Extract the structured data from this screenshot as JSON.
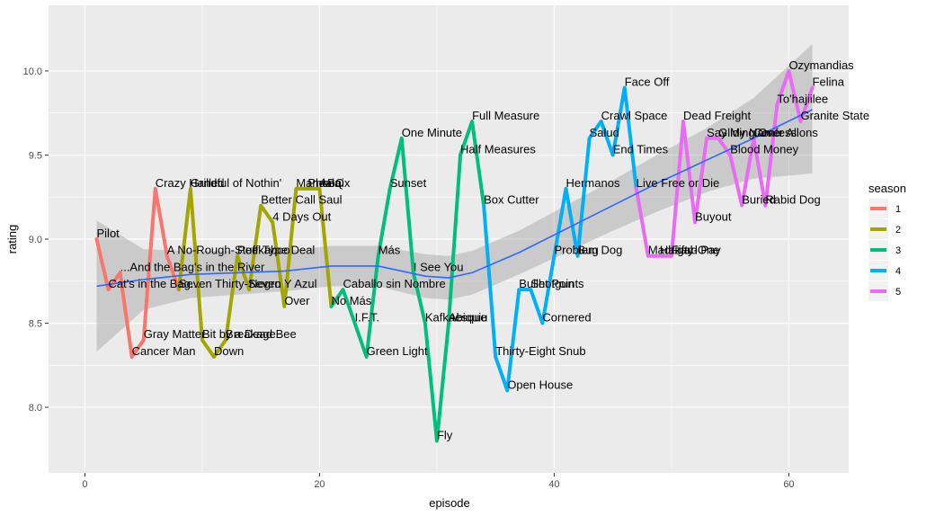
{
  "chart_data": {
    "type": "line",
    "xlabel": "episode",
    "ylabel": "rating",
    "xlim": [
      -3.1,
      65.1
    ],
    "ylim": [
      7.61,
      10.39
    ],
    "x_ticks": [
      0,
      20,
      40,
      60
    ],
    "x_tick_labels": [
      "0",
      "20",
      "40",
      "60"
    ],
    "y_ticks": [
      8.0,
      8.5,
      9.0,
      9.5,
      10.0
    ],
    "y_tick_labels": [
      "8.0",
      "8.5",
      "9.0",
      "9.5",
      "10.0"
    ],
    "grid": true,
    "legend": {
      "title": "season",
      "position": "right"
    },
    "series": [
      {
        "name": "1",
        "color": "#F8766D",
        "x": [
          1,
          2,
          3,
          4,
          5,
          6,
          7
        ],
        "y": [
          9.0,
          8.7,
          8.8,
          8.3,
          8.4,
          9.3,
          8.9
        ],
        "labels": [
          "Pilot",
          "Cat's in the Bag...",
          "...And the Bag's in the River",
          "Cancer Man",
          "Gray Matter",
          "Crazy Handful of Nothin'",
          "A No-Rough-Stuff-Type Deal"
        ]
      },
      {
        "name": "2",
        "color": "#A3A500",
        "x": [
          8,
          9,
          10,
          11,
          12,
          13,
          14,
          15,
          16,
          17,
          18,
          19,
          20
        ],
        "y": [
          8.7,
          9.3,
          8.4,
          8.3,
          8.4,
          8.9,
          8.7,
          9.2,
          9.1,
          8.6,
          9.3,
          9.3,
          9.3
        ],
        "labels": [
          "Seven Thirty-Seven",
          "Grilled",
          "Bit by a Dead Bee",
          "Down",
          "Breakage",
          "Peekaboo",
          "Negro Y Azul",
          "Better Call Saul",
          "4 Days Out",
          "Over",
          "Mandala",
          "Phoenix",
          "ABQ"
        ]
      },
      {
        "name": "3",
        "color": "#00BF7D",
        "x": [
          21,
          22,
          23,
          24,
          25,
          26,
          27,
          28,
          29,
          30,
          31,
          32,
          33
        ],
        "y": [
          8.6,
          8.7,
          8.5,
          8.3,
          8.9,
          9.3,
          9.6,
          8.8,
          8.5,
          7.8,
          8.5,
          9.5,
          9.7
        ],
        "labels": [
          "No Más",
          "Caballo sin Nombre",
          "I.F.T.",
          "Green Light",
          "Más",
          "Sunset",
          "One Minute",
          "I See You",
          "Kafkaesque",
          "Fly",
          "Abiquiu",
          "Half Measures",
          "Full Measure"
        ]
      },
      {
        "name": "4",
        "color": "#00B0F6",
        "x": [
          34,
          35,
          36,
          37,
          38,
          39,
          40,
          41,
          42,
          43,
          44,
          45,
          46
        ],
        "y": [
          9.2,
          8.3,
          8.1,
          8.7,
          8.7,
          8.5,
          8.9,
          9.3,
          8.9,
          9.6,
          9.7,
          9.5,
          9.9
        ],
        "labels": [
          "Box Cutter",
          "Thirty-Eight Snub",
          "Open House",
          "Bullet Points",
          "Shotgun",
          "Cornered",
          "Problem Dog",
          "Hermanos",
          "Bug",
          "Salud",
          "Crawl Space",
          "End Times",
          "Face Off"
        ]
      },
      {
        "name": "5",
        "color": "#E76BF3",
        "x": [
          47,
          48,
          49,
          50,
          51,
          52,
          53,
          54,
          55,
          56,
          57,
          58,
          59,
          60,
          61,
          62
        ],
        "y": [
          9.3,
          8.9,
          8.9,
          8.9,
          9.7,
          9.1,
          9.6,
          9.6,
          9.5,
          9.2,
          9.6,
          9.2,
          9.8,
          10.0,
          9.7,
          9.9
        ],
        "labels": [
          "Live Free or Die",
          "Madrigal",
          "Hazard Pay",
          "Fifty-One",
          "Dead Freight",
          "Buyout",
          "Say My Name",
          "Gliding Over All",
          "Blood Money",
          "Buried",
          "Confessions",
          "Rabid Dog",
          "To'hajiilee",
          "Ozymandias",
          "Granite State",
          "Felina"
        ]
      }
    ],
    "smooth": {
      "color": "#3366FF",
      "ribbon_color": "#999999",
      "x": [
        1,
        5,
        9,
        13,
        17,
        21,
        25,
        29,
        31,
        33,
        37,
        41,
        45,
        49,
        53,
        57,
        62
      ],
      "y": [
        8.72,
        8.76,
        8.79,
        8.8,
        8.81,
        8.84,
        8.84,
        8.78,
        8.77,
        8.8,
        8.92,
        9.06,
        9.2,
        9.34,
        9.47,
        9.6,
        9.77
      ],
      "lower": [
        8.33,
        8.58,
        8.65,
        8.67,
        8.69,
        8.72,
        8.72,
        8.65,
        8.64,
        8.67,
        8.79,
        8.92,
        9.05,
        9.17,
        9.28,
        9.36,
        9.39
      ],
      "upper": [
        9.11,
        8.94,
        8.93,
        8.93,
        8.93,
        8.96,
        8.96,
        8.91,
        8.9,
        8.93,
        9.05,
        9.2,
        9.35,
        9.51,
        9.66,
        9.84,
        10.16
      ]
    }
  }
}
